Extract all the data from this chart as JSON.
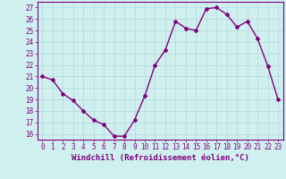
{
  "x": [
    0,
    1,
    2,
    3,
    4,
    5,
    6,
    7,
    8,
    9,
    10,
    11,
    12,
    13,
    14,
    15,
    16,
    17,
    18,
    19,
    20,
    21,
    22,
    23
  ],
  "y": [
    21,
    20.7,
    19.5,
    18.9,
    18.0,
    17.2,
    16.8,
    15.8,
    15.8,
    17.2,
    19.3,
    22.0,
    23.3,
    25.8,
    25.2,
    25.0,
    26.9,
    27.0,
    26.4,
    25.3,
    25.8,
    24.3,
    21.9,
    19.0
  ],
  "line_color": "#800080",
  "marker": "D",
  "marker_size": 2,
  "bg_color": "#d0f0f0",
  "grid_color": "#b0d8d8",
  "xlabel": "Windchill (Refroidissement éolien,°C)",
  "ylim": [
    15.5,
    27.5
  ],
  "xlim": [
    -0.5,
    23.5
  ],
  "yticks": [
    16,
    17,
    18,
    19,
    20,
    21,
    22,
    23,
    24,
    25,
    26,
    27
  ],
  "xticks": [
    0,
    1,
    2,
    3,
    4,
    5,
    6,
    7,
    8,
    9,
    10,
    11,
    12,
    13,
    14,
    15,
    16,
    17,
    18,
    19,
    20,
    21,
    22,
    23
  ],
  "xlabel_fontsize": 6.5,
  "tick_fontsize": 5.5,
  "line_width": 1.0
}
